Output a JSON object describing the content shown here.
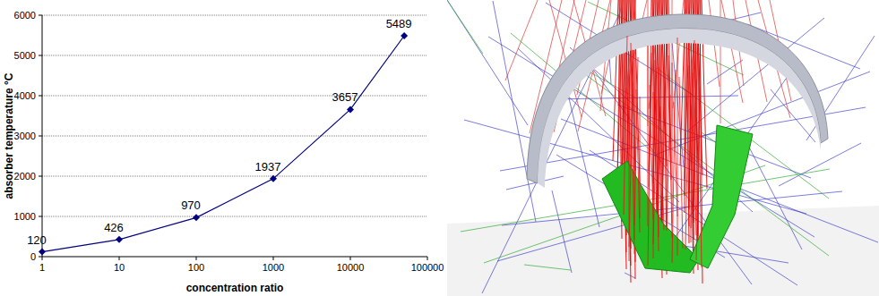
{
  "chart_data": {
    "type": "line",
    "x_label": "concentration ratio",
    "y_label": "absorber temperature °C",
    "x": [
      1,
      10,
      100,
      1000,
      10000,
      50000
    ],
    "values": [
      120,
      426,
      970,
      1937,
      3657,
      5489
    ],
    "color": "#000080",
    "marker": "diamond",
    "line_style": "solid",
    "xlim": [
      1,
      100000
    ],
    "xticks": [
      1,
      10,
      100,
      1000,
      10000,
      100000
    ],
    "ylim": [
      0,
      6000
    ],
    "yticks": [
      0,
      1000,
      2000,
      3000,
      4000,
      5000,
      6000
    ],
    "log": "x",
    "grid": true,
    "data_labels": true
  }
}
